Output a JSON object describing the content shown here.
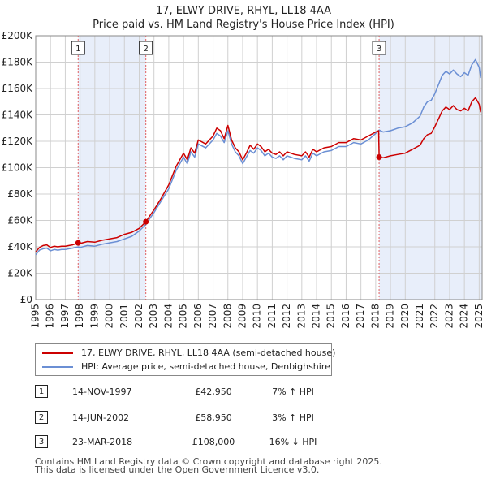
{
  "title_line1": "17, ELWY DRIVE, RHYL, LL18 4AA",
  "title_line2": "Price paid vs. HM Land Registry's House Price Index (HPI)",
  "legend": {
    "items": [
      {
        "label": "17, ELWY DRIVE, RHYL, LL18 4AA (semi-detached house)",
        "color": "#cc0000"
      },
      {
        "label": "HPI: Average price, semi-detached house, Denbighshire",
        "color": "#6b8fd4"
      }
    ]
  },
  "sales": [
    {
      "num": "1",
      "date": "14-NOV-1997",
      "price": "£42,950",
      "hpi": "7% ↑ HPI"
    },
    {
      "num": "2",
      "date": "14-JUN-2002",
      "price": "£58,950",
      "hpi": "3% ↑ HPI"
    },
    {
      "num": "3",
      "date": "23-MAR-2018",
      "price": "£108,000",
      "hpi": "16% ↓ HPI"
    }
  ],
  "footer": {
    "line1": "Contains HM Land Registry data © Crown copyright and database right 2025.",
    "line2": "This data is licensed under the Open Government Licence v3.0."
  },
  "colors": {
    "price_line": "#cc0000",
    "hpi_line": "#6b8fd4",
    "shade": "#e8eefa",
    "grid": "#d0d0d0",
    "marker_line": "#e06060"
  },
  "chart_data": {
    "type": "line",
    "title": "Price paid vs. HM Land Registry's House Price Index (HPI)",
    "xlabel": "",
    "ylabel": "",
    "xlim": [
      1995,
      2025.2
    ],
    "ylim": [
      0,
      200000
    ],
    "yticks": [
      0,
      20000,
      40000,
      60000,
      80000,
      100000,
      120000,
      140000,
      160000,
      180000,
      200000
    ],
    "ytick_labels": [
      "£0",
      "£20K",
      "£40K",
      "£60K",
      "£80K",
      "£100K",
      "£120K",
      "£140K",
      "£160K",
      "£180K",
      "£200K"
    ],
    "xticks": [
      1995,
      1996,
      1997,
      1998,
      1999,
      2000,
      2001,
      2002,
      2003,
      2004,
      2005,
      2006,
      2007,
      2008,
      2009,
      2010,
      2011,
      2012,
      2013,
      2014,
      2015,
      2016,
      2017,
      2018,
      2019,
      2020,
      2021,
      2022,
      2023,
      2024,
      2025
    ],
    "xtick_labels": [
      "1995",
      "1996",
      "1997",
      "1998",
      "1999",
      "2000",
      "2001",
      "2002",
      "2003",
      "2004",
      "2005",
      "2006",
      "2007",
      "2008",
      "2009",
      "2010",
      "2011",
      "2012",
      "2013",
      "2014",
      "2015",
      "2016",
      "2017",
      "2018",
      "2019",
      "2020",
      "2021",
      "2022",
      "2023",
      "2024",
      "2025"
    ],
    "grid": true,
    "legend_position": "bottom",
    "shaded_ranges": [
      [
        1997.87,
        2002.45
      ],
      [
        2018.23,
        2025.2
      ]
    ],
    "sale_markers": [
      {
        "label": "1",
        "x": 1997.87,
        "y": 42950
      },
      {
        "label": "2",
        "x": 2002.45,
        "y": 58950
      },
      {
        "label": "3",
        "x": 2018.23,
        "y": 108000
      }
    ],
    "series": [
      {
        "name": "HPI: Average price, semi-detached house, Denbighshire",
        "points": [
          [
            1995.0,
            34000
          ],
          [
            1995.25,
            37500
          ],
          [
            1995.5,
            38500
          ],
          [
            1995.75,
            39000
          ],
          [
            1996.0,
            37000
          ],
          [
            1996.25,
            38000
          ],
          [
            1996.5,
            37500
          ],
          [
            1996.75,
            38000
          ],
          [
            1997.0,
            38000
          ],
          [
            1997.25,
            38500
          ],
          [
            1997.5,
            39000
          ],
          [
            1997.87,
            40000
          ],
          [
            1998.0,
            39500
          ],
          [
            1998.5,
            41000
          ],
          [
            1999.0,
            40500
          ],
          [
            1999.5,
            42000
          ],
          [
            2000.0,
            43000
          ],
          [
            2000.5,
            44000
          ],
          [
            2001.0,
            46000
          ],
          [
            2001.5,
            48000
          ],
          [
            2002.0,
            52000
          ],
          [
            2002.45,
            57000
          ],
          [
            2002.75,
            62000
          ],
          [
            2003.0,
            66000
          ],
          [
            2003.5,
            75000
          ],
          [
            2004.0,
            84000
          ],
          [
            2004.5,
            98000
          ],
          [
            2005.0,
            108000
          ],
          [
            2005.25,
            103000
          ],
          [
            2005.5,
            112000
          ],
          [
            2005.75,
            108000
          ],
          [
            2006.0,
            118000
          ],
          [
            2006.5,
            115000
          ],
          [
            2007.0,
            121000
          ],
          [
            2007.25,
            126000
          ],
          [
            2007.5,
            124000
          ],
          [
            2007.75,
            119000
          ],
          [
            2008.0,
            128000
          ],
          [
            2008.25,
            118000
          ],
          [
            2008.5,
            112000
          ],
          [
            2008.75,
            109000
          ],
          [
            2009.0,
            103000
          ],
          [
            2009.25,
            108000
          ],
          [
            2009.5,
            113000
          ],
          [
            2009.75,
            111000
          ],
          [
            2010.0,
            115000
          ],
          [
            2010.25,
            113000
          ],
          [
            2010.5,
            109000
          ],
          [
            2010.75,
            111000
          ],
          [
            2011.0,
            108000
          ],
          [
            2011.25,
            107000
          ],
          [
            2011.5,
            109000
          ],
          [
            2011.75,
            106000
          ],
          [
            2012.0,
            109000
          ],
          [
            2012.5,
            107000
          ],
          [
            2013.0,
            106000
          ],
          [
            2013.25,
            109000
          ],
          [
            2013.5,
            105000
          ],
          [
            2013.75,
            111000
          ],
          [
            2014.0,
            109000
          ],
          [
            2014.5,
            112000
          ],
          [
            2015.0,
            113000
          ],
          [
            2015.5,
            116000
          ],
          [
            2016.0,
            116000
          ],
          [
            2016.5,
            119000
          ],
          [
            2017.0,
            118000
          ],
          [
            2017.5,
            121000
          ],
          [
            2018.0,
            126000
          ],
          [
            2018.23,
            128500
          ],
          [
            2018.5,
            127000
          ],
          [
            2019.0,
            128000
          ],
          [
            2019.5,
            130000
          ],
          [
            2020.0,
            131000
          ],
          [
            2020.5,
            134000
          ],
          [
            2021.0,
            139000
          ],
          [
            2021.25,
            146000
          ],
          [
            2021.5,
            150000
          ],
          [
            2021.75,
            151000
          ],
          [
            2022.0,
            156000
          ],
          [
            2022.25,
            163000
          ],
          [
            2022.5,
            170000
          ],
          [
            2022.75,
            173000
          ],
          [
            2023.0,
            171000
          ],
          [
            2023.25,
            174000
          ],
          [
            2023.5,
            171000
          ],
          [
            2023.75,
            169000
          ],
          [
            2024.0,
            172000
          ],
          [
            2024.25,
            170000
          ],
          [
            2024.5,
            178000
          ],
          [
            2024.75,
            182000
          ],
          [
            2025.0,
            176000
          ],
          [
            2025.1,
            168000
          ]
        ]
      },
      {
        "name": "17, ELWY DRIVE, RHYL, LL18 4AA (semi-detached house)",
        "points": [
          [
            1995.0,
            36000
          ],
          [
            1995.25,
            39500
          ],
          [
            1995.5,
            41000
          ],
          [
            1995.75,
            41500
          ],
          [
            1996.0,
            39500
          ],
          [
            1996.25,
            40500
          ],
          [
            1996.5,
            40000
          ],
          [
            1996.75,
            40500
          ],
          [
            1997.0,
            40500
          ],
          [
            1997.25,
            41000
          ],
          [
            1997.5,
            41500
          ],
          [
            1997.87,
            42950
          ],
          [
            1998.0,
            42500
          ],
          [
            1998.5,
            44000
          ],
          [
            1999.0,
            43500
          ],
          [
            1999.5,
            45000
          ],
          [
            2000.0,
            46000
          ],
          [
            2000.5,
            47000
          ],
          [
            2001.0,
            49500
          ],
          [
            2001.5,
            51000
          ],
          [
            2002.0,
            54000
          ],
          [
            2002.45,
            58950
          ],
          [
            2002.75,
            64000
          ],
          [
            2003.0,
            68000
          ],
          [
            2003.5,
            77000
          ],
          [
            2004.0,
            87000
          ],
          [
            2004.5,
            101000
          ],
          [
            2005.0,
            111000
          ],
          [
            2005.25,
            106000
          ],
          [
            2005.5,
            115000
          ],
          [
            2005.75,
            111000
          ],
          [
            2006.0,
            121000
          ],
          [
            2006.5,
            118000
          ],
          [
            2007.0,
            124000
          ],
          [
            2007.25,
            130000
          ],
          [
            2007.5,
            128000
          ],
          [
            2007.75,
            122000
          ],
          [
            2008.0,
            132000
          ],
          [
            2008.25,
            121000
          ],
          [
            2008.5,
            115000
          ],
          [
            2008.75,
            112000
          ],
          [
            2009.0,
            106000
          ],
          [
            2009.25,
            111000
          ],
          [
            2009.5,
            117000
          ],
          [
            2009.75,
            114000
          ],
          [
            2010.0,
            118000
          ],
          [
            2010.25,
            116000
          ],
          [
            2010.5,
            112000
          ],
          [
            2010.75,
            114000
          ],
          [
            2011.0,
            111000
          ],
          [
            2011.25,
            110000
          ],
          [
            2011.5,
            112000
          ],
          [
            2011.75,
            109000
          ],
          [
            2012.0,
            112000
          ],
          [
            2012.5,
            110000
          ],
          [
            2013.0,
            109000
          ],
          [
            2013.25,
            112000
          ],
          [
            2013.5,
            108000
          ],
          [
            2013.75,
            114000
          ],
          [
            2014.0,
            112000
          ],
          [
            2014.5,
            115000
          ],
          [
            2015.0,
            116000
          ],
          [
            2015.5,
            119000
          ],
          [
            2016.0,
            119000
          ],
          [
            2016.5,
            122000
          ],
          [
            2017.0,
            121000
          ],
          [
            2017.5,
            124000
          ],
          [
            2018.0,
            127000
          ],
          [
            2018.2,
            128000
          ],
          [
            2018.23,
            108000
          ],
          [
            2018.5,
            107500
          ],
          [
            2019.0,
            109000
          ],
          [
            2019.5,
            110000
          ],
          [
            2020.0,
            111000
          ],
          [
            2020.5,
            114000
          ],
          [
            2021.0,
            117000
          ],
          [
            2021.25,
            122000
          ],
          [
            2021.5,
            125000
          ],
          [
            2021.75,
            126000
          ],
          [
            2022.0,
            131000
          ],
          [
            2022.25,
            137000
          ],
          [
            2022.5,
            143000
          ],
          [
            2022.75,
            146000
          ],
          [
            2023.0,
            144000
          ],
          [
            2023.25,
            147000
          ],
          [
            2023.5,
            144000
          ],
          [
            2023.75,
            143000
          ],
          [
            2024.0,
            145000
          ],
          [
            2024.25,
            143000
          ],
          [
            2024.5,
            150000
          ],
          [
            2024.75,
            153000
          ],
          [
            2025.0,
            148000
          ],
          [
            2025.1,
            142000
          ]
        ]
      }
    ]
  }
}
